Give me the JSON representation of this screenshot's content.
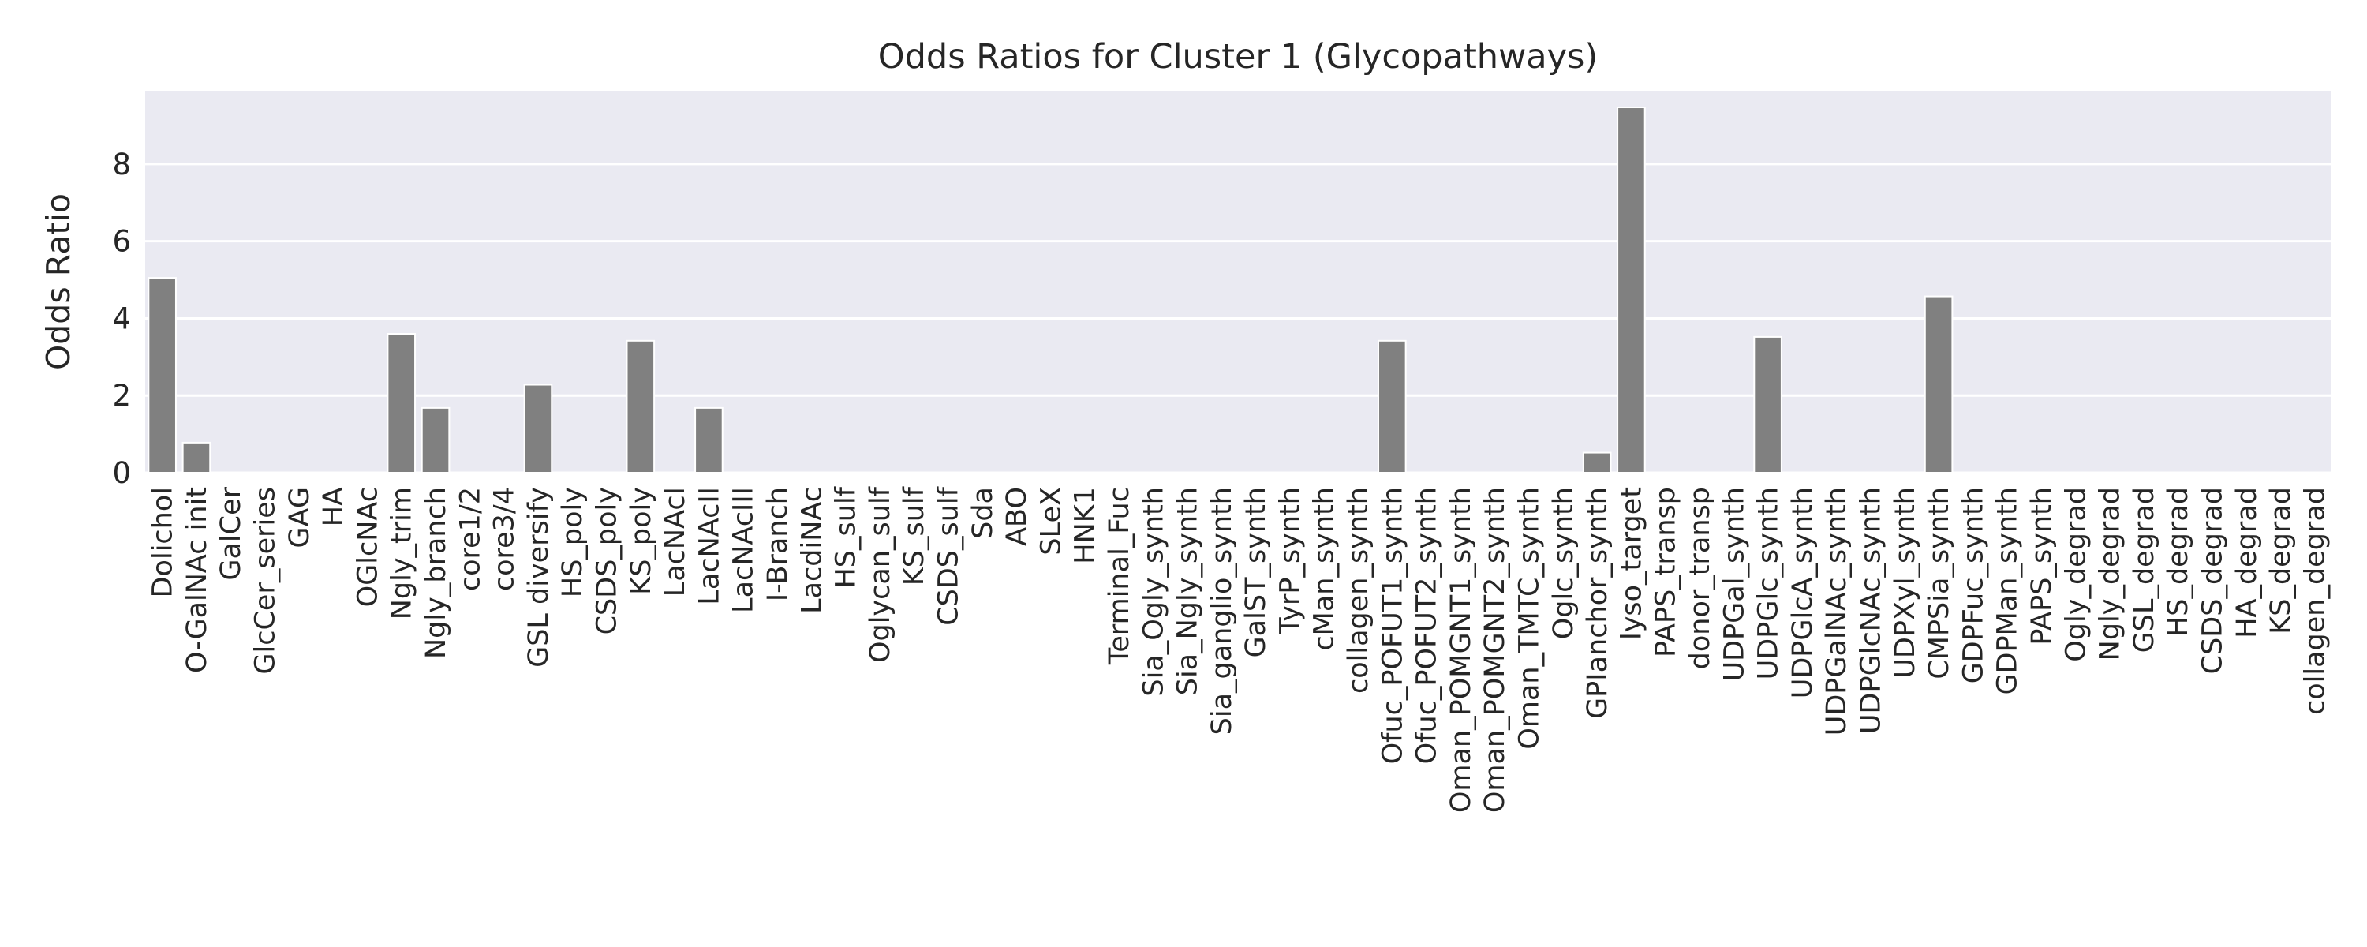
{
  "chart_data": {
    "type": "bar",
    "title": "Odds Ratios for Cluster 1 (Glycopathways)",
    "xlabel": "",
    "ylabel": "Odds Ratio",
    "ylim": [
      0,
      9.9
    ],
    "yticks": [
      0,
      2,
      4,
      6,
      8
    ],
    "grid": true,
    "legend": "none",
    "colors": {
      "bar": "#808080",
      "plot_bg": "#eaeaf2",
      "grid": "#ffffff",
      "text": "#262626"
    },
    "categories": [
      "Dolichol",
      "O-GalNAc init",
      "GalCer",
      "GlcCer_series",
      "GAG",
      "HA",
      "OGlcNAc",
      "Ngly_trim",
      "Ngly_branch",
      "core1/2",
      "core3/4",
      "GSL diversify",
      "HS_poly",
      "CSDS_poly",
      "KS_poly",
      "LacNAcI",
      "LacNAcII",
      "LacNAcIII",
      "I-Branch",
      "LacdiNAc",
      "HS_sulf",
      "Oglycan_sulf",
      "KS_sulf",
      "CSDS_sulf",
      "Sda",
      "ABO",
      "SLeX",
      "HNK1",
      "Terminal_Fuc",
      "Sia_Ogly_synth",
      "Sia_Ngly_synth",
      "Sia_ganglio_synth",
      "GalST_synth",
      "TyrP_synth",
      "cMan_synth",
      "collagen_synth",
      "Ofuc_POFUT1_synth",
      "Ofuc_POFUT2_synth",
      "Oman_POMGNT1_synth",
      "Oman_POMGNT2_synth",
      "Oman_TMTC_synth",
      "Oglc_synth",
      "GPIanchor_synth",
      "lyso_target",
      "PAPS_transp",
      "donor_transp",
      "UDPGal_synth",
      "UDPGlc_synth",
      "UDPGlcA_synth",
      "UDPGalNAc_synth",
      "UDPGlcNAc_synth",
      "UDPXyl_synth",
      "CMPSia_synth",
      "GDPFuc_synth",
      "GDPMan_synth",
      "PAPS_synth",
      "Ogly_degrad",
      "Ngly_degrad",
      "GSL_degrad",
      "HS_degrad",
      "CSDS_degrad",
      "HA_degrad",
      "KS_degrad",
      "collagen_degrad"
    ],
    "values": [
      5.05,
      0.78,
      0,
      0,
      0,
      0,
      0,
      3.6,
      1.68,
      0,
      0,
      2.28,
      0,
      0,
      3.42,
      0,
      1.68,
      0,
      0,
      0,
      0,
      0,
      0,
      0,
      0,
      0,
      0,
      0,
      0,
      0,
      0,
      0,
      0,
      0,
      0,
      0,
      3.42,
      0,
      0,
      0,
      0,
      0,
      0.52,
      9.47,
      0,
      0,
      0,
      3.52,
      0,
      0,
      0,
      0,
      4.57,
      0,
      0,
      0,
      0,
      0,
      0,
      0,
      0,
      0,
      0,
      0
    ]
  }
}
